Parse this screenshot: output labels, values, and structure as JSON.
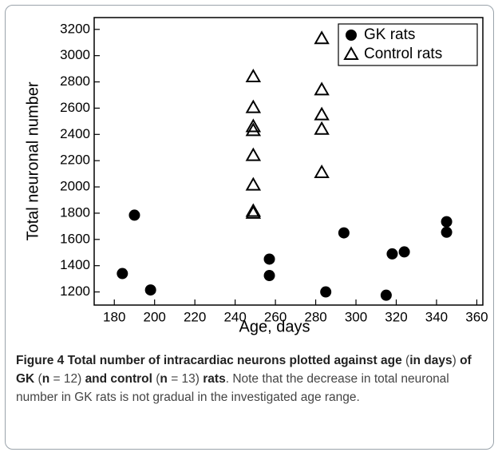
{
  "chart_data": {
    "type": "scatter",
    "x_label": "Age, days",
    "y_label": "Total neuronal number",
    "xlim": [
      170,
      363
    ],
    "xticks": [
      180,
      200,
      220,
      240,
      260,
      280,
      300,
      320,
      340,
      360
    ],
    "ylim": [
      1100,
      3290
    ],
    "yticks": [
      1200,
      1400,
      1600,
      1800,
      2000,
      2200,
      2400,
      2600,
      2800,
      3000,
      3200
    ],
    "legend": "upper right",
    "series": [
      {
        "name": "GK rats",
        "color": "#000000",
        "marker": "circle",
        "x": [
          184,
          190,
          198,
          257,
          257,
          285,
          294,
          315,
          318,
          324,
          345,
          345
        ],
        "values": [
          1340,
          1785,
          1215,
          1450,
          1325,
          1200,
          1650,
          1175,
          1490,
          1505,
          1735,
          1655
        ]
      },
      {
        "name": "Control rats",
        "color": "#000000",
        "marker": "triangle",
        "x": [
          249,
          249,
          249,
          249,
          249,
          249,
          249,
          249,
          283,
          283,
          283,
          283,
          283
        ],
        "values": [
          2840,
          2605,
          2460,
          2430,
          2240,
          2015,
          1815,
          1800,
          3130,
          2740,
          2550,
          2440,
          2110
        ]
      }
    ],
    "caption": [
      {
        "text": "Figure 4 Total number of intracardiac neurons plotted against age",
        "bold": true
      },
      {
        "text": " (",
        "bold": false
      },
      {
        "text": "in days",
        "bold": true
      },
      {
        "text": ") ",
        "bold": false
      },
      {
        "text": "of GK",
        "bold": true
      },
      {
        "text": " (",
        "bold": false
      },
      {
        "text": "n",
        "bold": true
      },
      {
        "text": " = 12) ",
        "bold": false
      },
      {
        "text": "and control",
        "bold": true
      },
      {
        "text": " (",
        "bold": false
      },
      {
        "text": "n",
        "bold": true
      },
      {
        "text": " = 13) ",
        "bold": false
      },
      {
        "text": "rats",
        "bold": true
      },
      {
        "text": ". Note that the decrease in total neuronal number in GK rats is not gradual in the investigated age range.",
        "bold": false
      }
    ]
  }
}
